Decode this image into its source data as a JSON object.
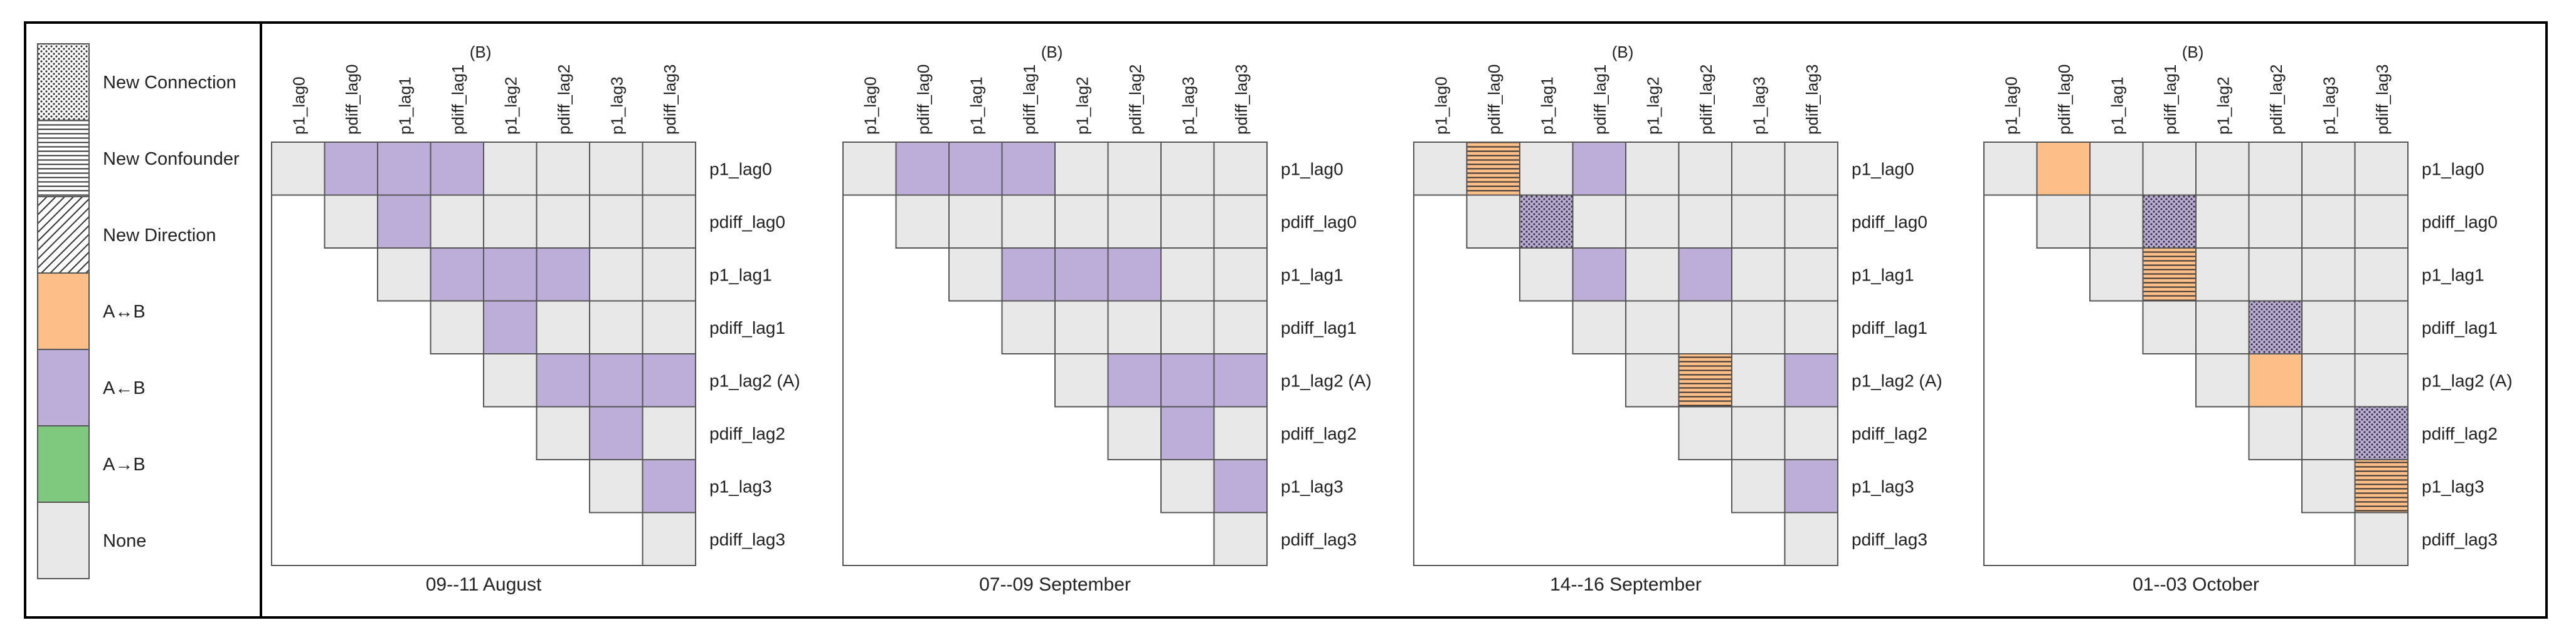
{
  "legend": {
    "items": [
      {
        "key": "new_connection",
        "label": "New Connection",
        "fill": "#ffffff",
        "pattern": "dots"
      },
      {
        "key": "new_confounder",
        "label": "New Confounder",
        "fill": "#ffffff",
        "pattern": "hlines"
      },
      {
        "key": "new_direction",
        "label": "New Direction",
        "fill": "#ffffff",
        "pattern": "diag"
      },
      {
        "key": "bidirected",
        "label": "A↔B",
        "fill": "#fdbf87",
        "pattern": null
      },
      {
        "key": "backward",
        "label": "A←B",
        "fill": "#bdaed9",
        "pattern": null
      },
      {
        "key": "forward",
        "label": "A→B",
        "fill": "#7ec97e",
        "pattern": null
      },
      {
        "key": "none",
        "label": "None",
        "fill": "#e8e8e8",
        "pattern": null
      }
    ]
  },
  "colors": {
    "none": "#e8e8e8",
    "backward": "#bdaed9",
    "bidirected": "#fdbf87",
    "forward": "#7ec97e",
    "grid_line": "#555555",
    "frame": "#000000",
    "pattern_ink": "#333333"
  },
  "variables": [
    "p1_lag0",
    "pdiff_lag0",
    "p1_lag1",
    "pdiff_lag1",
    "p1_lag2",
    "pdiff_lag2",
    "p1_lag3",
    "pdiff_lag3"
  ],
  "row_labels": [
    "p1_lag0",
    "pdiff_lag0",
    "p1_lag1",
    "pdiff_lag1",
    "p1_lag2 (A)",
    "pdiff_lag2",
    "p1_lag3",
    "pdiff_lag3"
  ],
  "b_marker": "(B)",
  "chart_data": [
    {
      "type": "heatmap",
      "title": "09--11 August",
      "cells": [
        {
          "row": 0,
          "col": 1,
          "type": "backward",
          "pattern": null
        },
        {
          "row": 0,
          "col": 2,
          "type": "backward",
          "pattern": null
        },
        {
          "row": 0,
          "col": 3,
          "type": "backward",
          "pattern": null
        },
        {
          "row": 1,
          "col": 2,
          "type": "backward",
          "pattern": null
        },
        {
          "row": 2,
          "col": 3,
          "type": "backward",
          "pattern": null
        },
        {
          "row": 2,
          "col": 4,
          "type": "backward",
          "pattern": null
        },
        {
          "row": 2,
          "col": 5,
          "type": "backward",
          "pattern": null
        },
        {
          "row": 3,
          "col": 4,
          "type": "backward",
          "pattern": null
        },
        {
          "row": 4,
          "col": 5,
          "type": "backward",
          "pattern": null
        },
        {
          "row": 4,
          "col": 6,
          "type": "backward",
          "pattern": null
        },
        {
          "row": 4,
          "col": 7,
          "type": "backward",
          "pattern": null
        },
        {
          "row": 5,
          "col": 6,
          "type": "backward",
          "pattern": null
        },
        {
          "row": 6,
          "col": 7,
          "type": "backward",
          "pattern": null
        }
      ]
    },
    {
      "type": "heatmap",
      "title": "07--09 September",
      "cells": [
        {
          "row": 0,
          "col": 1,
          "type": "backward",
          "pattern": null
        },
        {
          "row": 0,
          "col": 2,
          "type": "backward",
          "pattern": null
        },
        {
          "row": 0,
          "col": 3,
          "type": "backward",
          "pattern": null
        },
        {
          "row": 2,
          "col": 3,
          "type": "backward",
          "pattern": null
        },
        {
          "row": 2,
          "col": 4,
          "type": "backward",
          "pattern": null
        },
        {
          "row": 2,
          "col": 5,
          "type": "backward",
          "pattern": null
        },
        {
          "row": 4,
          "col": 5,
          "type": "backward",
          "pattern": null
        },
        {
          "row": 4,
          "col": 6,
          "type": "backward",
          "pattern": null
        },
        {
          "row": 4,
          "col": 7,
          "type": "backward",
          "pattern": null
        },
        {
          "row": 5,
          "col": 6,
          "type": "backward",
          "pattern": null
        },
        {
          "row": 6,
          "col": 7,
          "type": "backward",
          "pattern": null
        }
      ]
    },
    {
      "type": "heatmap",
      "title": "14--16 September",
      "cells": [
        {
          "row": 0,
          "col": 1,
          "type": "bidirected",
          "pattern": "hlines"
        },
        {
          "row": 0,
          "col": 3,
          "type": "backward",
          "pattern": null
        },
        {
          "row": 1,
          "col": 2,
          "type": "backward",
          "pattern": "dots"
        },
        {
          "row": 2,
          "col": 3,
          "type": "backward",
          "pattern": null
        },
        {
          "row": 2,
          "col": 5,
          "type": "backward",
          "pattern": null
        },
        {
          "row": 4,
          "col": 5,
          "type": "bidirected",
          "pattern": "hlines"
        },
        {
          "row": 4,
          "col": 7,
          "type": "backward",
          "pattern": null
        },
        {
          "row": 6,
          "col": 7,
          "type": "backward",
          "pattern": null
        }
      ]
    },
    {
      "type": "heatmap",
      "title": "01--03 October",
      "cells": [
        {
          "row": 0,
          "col": 1,
          "type": "bidirected",
          "pattern": null
        },
        {
          "row": 1,
          "col": 3,
          "type": "backward",
          "pattern": "dots"
        },
        {
          "row": 2,
          "col": 3,
          "type": "bidirected",
          "pattern": "hlines"
        },
        {
          "row": 3,
          "col": 5,
          "type": "backward",
          "pattern": "dots"
        },
        {
          "row": 4,
          "col": 5,
          "type": "bidirected",
          "pattern": null
        },
        {
          "row": 5,
          "col": 7,
          "type": "backward",
          "pattern": "dots"
        },
        {
          "row": 6,
          "col": 7,
          "type": "bidirected",
          "pattern": "hlines"
        }
      ]
    }
  ]
}
